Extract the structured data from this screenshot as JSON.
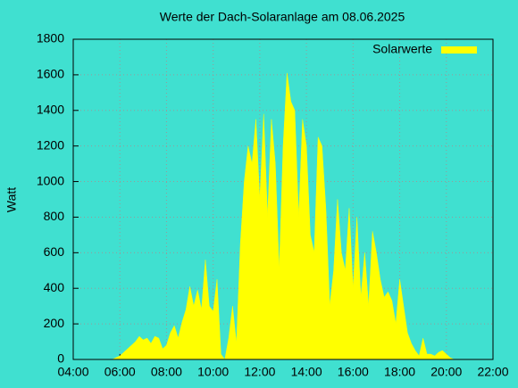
{
  "chart_data": {
    "type": "area",
    "title": "Werte der Dach-Solaranlage am 08.06.2025",
    "ylabel": "Watt",
    "x": [
      "05:40",
      "06:00",
      "06:20",
      "06:40",
      "06:50",
      "07:00",
      "07:10",
      "07:20",
      "07:30",
      "07:40",
      "07:50",
      "08:00",
      "08:10",
      "08:20",
      "08:30",
      "08:40",
      "08:50",
      "09:00",
      "09:10",
      "09:20",
      "09:30",
      "09:40",
      "09:50",
      "10:00",
      "10:10",
      "10:20",
      "10:30",
      "10:40",
      "10:50",
      "11:00",
      "11:10",
      "11:20",
      "11:30",
      "11:40",
      "11:50",
      "12:00",
      "12:10",
      "12:20",
      "12:30",
      "12:40",
      "12:50",
      "13:00",
      "13:10",
      "13:20",
      "13:30",
      "13:40",
      "13:50",
      "14:00",
      "14:10",
      "14:20",
      "14:30",
      "14:40",
      "14:50",
      "15:00",
      "15:10",
      "15:20",
      "15:30",
      "15:40",
      "15:50",
      "16:00",
      "16:10",
      "16:20",
      "16:30",
      "16:40",
      "16:50",
      "17:00",
      "17:10",
      "17:20",
      "17:30",
      "17:40",
      "17:50",
      "18:00",
      "18:10",
      "18:20",
      "18:30",
      "18:40",
      "18:50",
      "19:00",
      "19:10",
      "19:20",
      "19:30",
      "19:40",
      "19:50",
      "20:00",
      "20:10",
      "20:20"
    ],
    "series": [
      {
        "name": "Solarwerte",
        "color": "#ffff00",
        "values": [
          0,
          20,
          60,
          100,
          130,
          110,
          120,
          90,
          130,
          120,
          60,
          80,
          150,
          190,
          120,
          210,
          280,
          410,
          300,
          390,
          280,
          560,
          300,
          270,
          450,
          30,
          0,
          120,
          300,
          90,
          650,
          1000,
          1200,
          1100,
          1350,
          900,
          1380,
          800,
          1350,
          1100,
          500,
          1200,
          1610,
          1450,
          1400,
          800,
          1350,
          1200,
          700,
          600,
          1250,
          1200,
          850,
          300,
          500,
          900,
          600,
          500,
          850,
          400,
          800,
          350,
          600,
          300,
          720,
          600,
          450,
          350,
          380,
          330,
          200,
          450,
          300,
          150,
          90,
          50,
          20,
          120,
          30,
          30,
          20,
          40,
          50,
          30,
          10,
          0
        ]
      }
    ],
    "xlim": [
      "04:00",
      "22:00"
    ],
    "xticks": [
      "04:00",
      "06:00",
      "08:00",
      "10:00",
      "12:00",
      "14:00",
      "16:00",
      "18:00",
      "20:00",
      "22:00"
    ],
    "ylim": [
      0,
      1800
    ],
    "yticks": [
      0,
      200,
      400,
      600,
      800,
      1000,
      1200,
      1400,
      1600,
      1800
    ],
    "grid": true,
    "legend": "top-right"
  }
}
